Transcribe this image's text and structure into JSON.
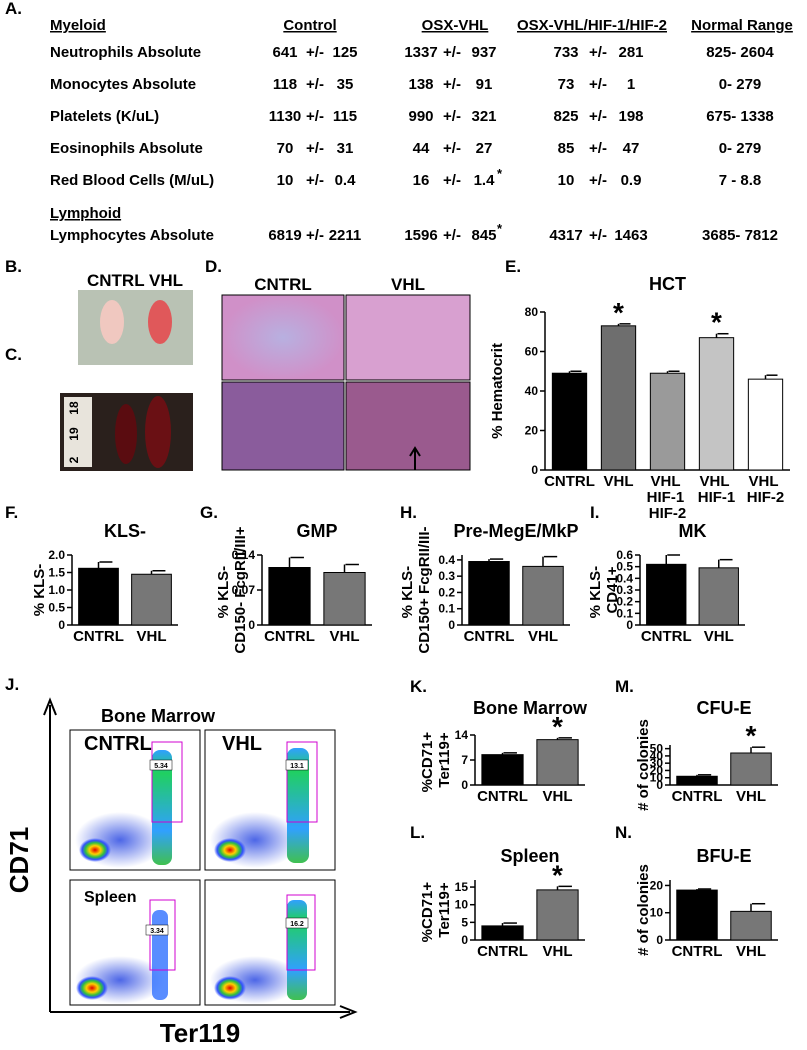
{
  "panel_labels": [
    "A.",
    "B.",
    "C.",
    "D.",
    "E.",
    "F.",
    "G.",
    "H.",
    "I.",
    "J.",
    "K.",
    "L.",
    "M.",
    "N."
  ],
  "table": {
    "header": [
      "Myeloid",
      "Control",
      "OSX-VHL",
      "OSX-VHL/HIF-1/HIF-2",
      "Normal Range"
    ],
    "rows": [
      {
        "label": "Neutrophils Absolute",
        "cells": [
          "641",
          "+/-",
          "125",
          "1337",
          "+/-",
          "937",
          "733",
          "+/-",
          "281",
          "825- 2604"
        ]
      },
      {
        "label": "Monocytes Absolute",
        "cells": [
          "118",
          "+/-",
          "35",
          "138",
          "+/-",
          "91",
          "73",
          "+/-",
          "1",
          "0- 279"
        ]
      },
      {
        "label": "Platelets  (K/uL)",
        "cells": [
          "1130",
          "+/-",
          "115",
          "990",
          "+/-",
          "321",
          "825",
          "+/-",
          "198",
          "675- 1338"
        ]
      },
      {
        "label": "Eosinophils Absolute",
        "cells": [
          "70",
          "+/-",
          "31",
          "44",
          "+/-",
          "27",
          "85",
          "+/-",
          "47",
          "0- 279"
        ]
      },
      {
        "label": "Red Blood Cells  (M/uL)",
        "cells": [
          "10",
          "+/-",
          "0.4",
          "16",
          "+/-",
          "1.4",
          "10",
          "+/-",
          "0.9",
          "7 - 8.8"
        ],
        "star": "*"
      }
    ],
    "section2": "Lymphoid",
    "rows2": [
      {
        "label": "Lymphocytes Absolute",
        "cells": [
          "6819",
          "+/-",
          "2211",
          "1596",
          "+/-",
          "845",
          "4317",
          "+/-",
          "1463",
          "3685- 7812"
        ],
        "star": "*"
      }
    ]
  },
  "photos": {
    "b": "CNTRL VHL",
    "c_ruler": [
      "18",
      "19",
      "2"
    ],
    "d": [
      "CNTRL",
      "VHL"
    ]
  },
  "flow": {
    "title": "Bone Marrow",
    "samples": [
      "CNTRL",
      "VHL"
    ],
    "tissue2": "Spleen",
    "y_axis": "CD71",
    "x_axis": "Ter119",
    "gates": [
      "5.34",
      "13.1",
      "3.34",
      "16.2"
    ]
  },
  "chart_data": [
    {
      "type": "bar",
      "title": "HCT",
      "ylabel": "% Hematocrit",
      "categories": [
        "CNTRL",
        "VHL",
        "VHL HIF-1 HIF-2",
        "VHL HIF-1",
        "VHL HIF-2"
      ],
      "values": [
        49,
        73,
        49,
        67,
        46
      ],
      "errors": [
        1,
        1,
        1,
        2,
        2
      ],
      "colors": [
        "#000000",
        "#6e6e6e",
        "#9a9a9a",
        "#c4c4c4",
        "#ffffff"
      ],
      "markers": [
        null,
        "*",
        null,
        "*",
        null
      ],
      "ylim": [
        0,
        80
      ],
      "yticks": [
        0,
        20,
        40,
        60,
        80
      ]
    },
    {
      "type": "bar",
      "title": "KLS-",
      "ylabel": "% KLS-",
      "categories": [
        "CNTRL",
        "VHL"
      ],
      "values": [
        1.62,
        1.45
      ],
      "errors": [
        0.18,
        0.1
      ],
      "colors": [
        "#000000",
        "#777777"
      ],
      "ylim": [
        0,
        2.0
      ],
      "yticks": [
        0,
        0.5,
        {
          "value": 1,
          "label": "1.0"
        },
        1.5,
        {
          "value": 2,
          "label": "2.0"
        }
      ]
    },
    {
      "type": "bar",
      "title": "GMP",
      "ylabel": "% KLS- CD150- FcgRII/III+",
      "categories": [
        "CNTRL",
        "VHL"
      ],
      "values": [
        0.115,
        0.105
      ],
      "errors": [
        0.02,
        0.016
      ],
      "colors": [
        "#000000",
        "#777777"
      ],
      "ylim": [
        0,
        0.14
      ],
      "yticks": [
        0,
        0.07,
        0.14
      ]
    },
    {
      "type": "bar",
      "title": "Pre-MegE/MkP",
      "ylabel": "% KLS- CD150+ FcgRII/III-",
      "categories": [
        "CNTRL",
        "VHL"
      ],
      "values": [
        0.39,
        0.36
      ],
      "errors": [
        0.015,
        0.06
      ],
      "colors": [
        "#000000",
        "#777777"
      ],
      "ylim": [
        0,
        0.43
      ],
      "yticks": [
        0,
        0.1,
        0.2,
        0.3,
        0.4
      ]
    },
    {
      "type": "bar",
      "title": "MK",
      "ylabel": "% KLS- CD41+",
      "categories": [
        "CNTRL",
        "VHL"
      ],
      "values": [
        0.52,
        0.49
      ],
      "errors": [
        0.08,
        0.07
      ],
      "colors": [
        "#000000",
        "#777777"
      ],
      "ylim": [
        0,
        0.6
      ],
      "yticks": [
        0,
        0.1,
        0.2,
        0.3,
        0.4,
        0.5,
        0.6
      ]
    },
    {
      "type": "bar",
      "title": "Bone Marrow",
      "ylabel": "%CD71+ Ter119+",
      "categories": [
        "CNTRL",
        "VHL"
      ],
      "values": [
        8.5,
        12.7
      ],
      "errors": [
        0.5,
        0.5
      ],
      "colors": [
        "#000000",
        "#777777"
      ],
      "markers": [
        null,
        "*"
      ],
      "ylim": [
        0,
        14
      ],
      "yticks": [
        0,
        7,
        14
      ]
    },
    {
      "type": "bar",
      "title": "Spleen",
      "ylabel": "%CD71+ Ter119+",
      "categories": [
        "CNTRL",
        "VHL"
      ],
      "values": [
        4,
        14.2
      ],
      "errors": [
        0.8,
        1
      ],
      "colors": [
        "#000000",
        "#777777"
      ],
      "markers": [
        null,
        "*"
      ],
      "ylim": [
        0,
        17
      ],
      "yticks": [
        0,
        5,
        10,
        15
      ]
    },
    {
      "type": "bar",
      "title": "CFU-E",
      "ylabel": "# of colonies",
      "categories": [
        "CNTRL",
        "VHL"
      ],
      "values": [
        12,
        44
      ],
      "errors": [
        2,
        8
      ],
      "colors": [
        "#000000",
        "#777777"
      ],
      "markers": [
        null,
        "*"
      ],
      "ylim": [
        0,
        55
      ],
      "yticks": [
        0,
        10,
        20,
        30,
        40,
        50
      ]
    },
    {
      "type": "bar",
      "title": "BFU-E",
      "ylabel": "# of colonies",
      "categories": [
        "CNTRL",
        "VHL"
      ],
      "values": [
        18.3,
        10.5
      ],
      "errors": [
        0.4,
        2.8
      ],
      "colors": [
        "#000000",
        "#777777"
      ],
      "ylim": [
        0,
        22
      ],
      "yticks": [
        0,
        10,
        20
      ]
    }
  ]
}
